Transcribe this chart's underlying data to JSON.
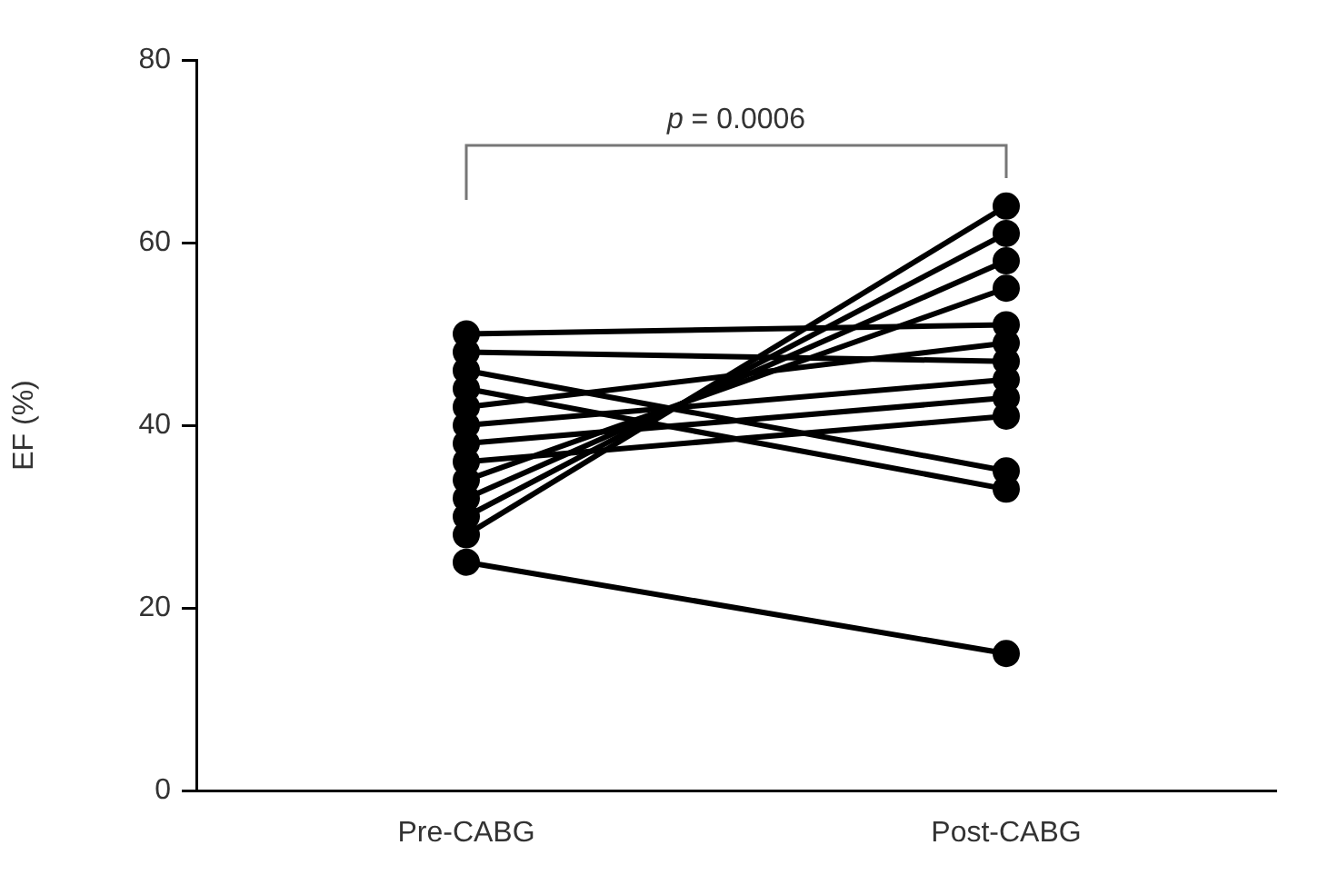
{
  "chart_data": {
    "type": "line",
    "ylabel": "EF (%)",
    "categories": [
      "Pre-CABG",
      "Post-CABG"
    ],
    "ylim": [
      0,
      80
    ],
    "yticks": [
      0,
      20,
      40,
      60,
      80
    ],
    "grid": false,
    "legend": false,
    "marker": "circle",
    "line_style": "solid",
    "annotations": [
      "p = 0.0006"
    ],
    "series": [
      {
        "color": "#000000",
        "values": [
          25,
          15
        ]
      },
      {
        "color": "#000000",
        "values": [
          28,
          64
        ]
      },
      {
        "color": "#000000",
        "values": [
          30,
          61
        ]
      },
      {
        "color": "#000000",
        "values": [
          32,
          58
        ]
      },
      {
        "color": "#000000",
        "values": [
          34,
          55
        ]
      },
      {
        "color": "#000000",
        "values": [
          36,
          41
        ]
      },
      {
        "color": "#000000",
        "values": [
          38,
          43
        ]
      },
      {
        "color": "#000000",
        "values": [
          40,
          45
        ]
      },
      {
        "color": "#000000",
        "values": [
          42,
          49
        ]
      },
      {
        "color": "#000000",
        "values": [
          44,
          33
        ]
      },
      {
        "color": "#000000",
        "values": [
          46,
          35
        ]
      },
      {
        "color": "#000000",
        "values": [
          48,
          47
        ]
      },
      {
        "color": "#000000",
        "values": [
          50,
          51
        ]
      }
    ]
  }
}
